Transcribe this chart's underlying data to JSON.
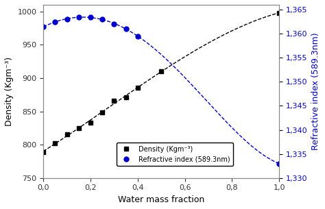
{
  "density_x": [
    0.0,
    0.05,
    0.1,
    0.15,
    0.2,
    0.25,
    0.3,
    0.35,
    0.4,
    0.5,
    1.0
  ],
  "density_y": [
    789,
    802,
    816,
    825,
    833,
    849,
    866,
    871,
    886,
    910,
    998
  ],
  "refractive_x": [
    0.0,
    0.05,
    0.1,
    0.15,
    0.2,
    0.25,
    0.3,
    0.35,
    0.4,
    1.0
  ],
  "refractive_y": [
    1.3614,
    1.3625,
    1.363,
    1.3634,
    1.3634,
    1.363,
    1.362,
    1.361,
    1.3595,
    1.333
  ],
  "xlabel": "Water mass fraction",
  "ylabel_left": "Density (Kgm⁻³)",
  "ylabel_right": "Refractive index (589.3nm)",
  "legend_density": "Density (Kgm⁻³)",
  "legend_ri": "Refractive index (589.3nm)",
  "xlim": [
    0.0,
    1.0
  ],
  "ylim_left": [
    750,
    1010
  ],
  "ylim_right": [
    1.33,
    1.366
  ],
  "xticks": [
    0.0,
    0.2,
    0.4,
    0.6,
    0.8,
    1.0
  ],
  "xtick_labels": [
    "0,0",
    "0,2",
    "0,4",
    "0,6",
    "0,8",
    "1,0"
  ],
  "yticks_left": [
    750,
    800,
    850,
    900,
    950,
    1000
  ],
  "yticks_right": [
    1.33,
    1.335,
    1.34,
    1.345,
    1.35,
    1.355,
    1.36,
    1.365
  ],
  "ytick_labels_right": [
    "1,330",
    "1,335",
    "1,340",
    "1,345",
    "1,350",
    "1,355",
    "1,360",
    "1,365"
  ],
  "density_color": "#000000",
  "refractive_color": "#0000cc",
  "fit_linestyle": "--",
  "marker_density": "s",
  "marker_ri": "o",
  "background_color": "#ffffff",
  "marker_size_density": 4,
  "marker_size_ri": 5
}
